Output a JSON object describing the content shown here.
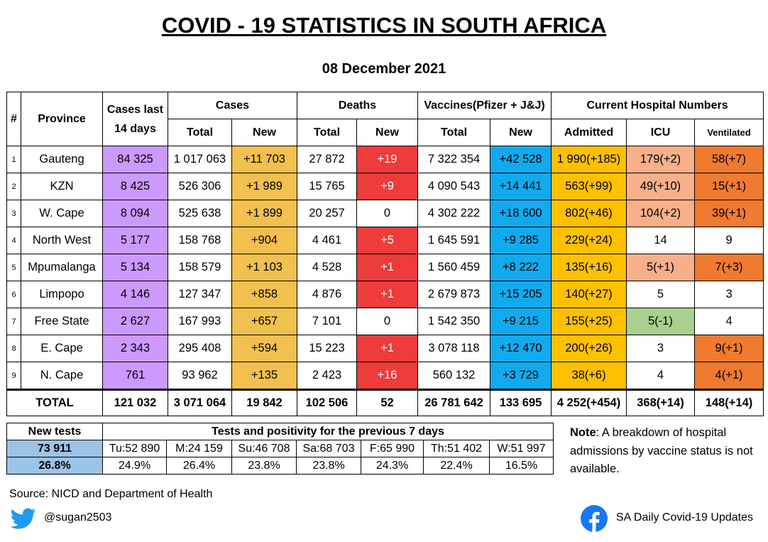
{
  "title": "COVID - 19 STATISTICS IN SOUTH AFRICA",
  "date": "08 December 2021",
  "header": {
    "num": "#",
    "province": "Province",
    "cases14_line1": "Cases last",
    "cases14_line2": "14 days",
    "cases": "Cases",
    "deaths": "Deaths",
    "vaccines": "Vaccines(Pfizer + J&J)",
    "hospital": "Current Hospital Numbers",
    "total": "Total",
    "new": "New",
    "admitted": "Admitted",
    "icu": "ICU",
    "ventilated": "Ventilated"
  },
  "rows": [
    {
      "num": "1",
      "province": "Gauteng",
      "cases14": "84 325",
      "cases_total": "1 017 063",
      "cases_new": "+11 703",
      "deaths_total": "27 872",
      "deaths_new": "+19",
      "vacc_total": "7 322 354",
      "vacc_new": "+42 528",
      "admitted": "1 990(+185)",
      "icu": "179(+2)",
      "ventilated": "58(+7)"
    },
    {
      "num": "2",
      "province": "KZN",
      "cases14": "8 425",
      "cases_total": "526 306",
      "cases_new": "+1 989",
      "deaths_total": "15 765",
      "deaths_new": "+9",
      "vacc_total": "4 090 543",
      "vacc_new": "+14 441",
      "admitted": "563(+99)",
      "icu": "49(+10)",
      "ventilated": "15(+1)"
    },
    {
      "num": "3",
      "province": "W. Cape",
      "cases14": "8 094",
      "cases_total": "525 638",
      "cases_new": "+1 899",
      "deaths_total": "20 257",
      "deaths_new": "0",
      "vacc_total": "4 302 222",
      "vacc_new": "+18 600",
      "admitted": "802(+46)",
      "icu": "104(+2)",
      "ventilated": "39(+1)"
    },
    {
      "num": "4",
      "province": "North West",
      "cases14": "5 177",
      "cases_total": "158 768",
      "cases_new": "+904",
      "deaths_total": "4 461",
      "deaths_new": "+5",
      "vacc_total": "1 645 591",
      "vacc_new": "+9 285",
      "admitted": "229(+24)",
      "icu": "14",
      "ventilated": "9"
    },
    {
      "num": "5",
      "province": "Mpumalanga",
      "cases14": "5 134",
      "cases_total": "158 579",
      "cases_new": "+1 103",
      "deaths_total": "4 528",
      "deaths_new": "+1",
      "vacc_total": "1 560 459",
      "vacc_new": "+8 222",
      "admitted": "135(+16)",
      "icu": "5(+1)",
      "ventilated": "7(+3)"
    },
    {
      "num": "6",
      "province": "Limpopo",
      "cases14": "4 146",
      "cases_total": "127 347",
      "cases_new": "+858",
      "deaths_total": "4 876",
      "deaths_new": "+1",
      "vacc_total": "2 679 873",
      "vacc_new": "+15 205",
      "admitted": "140(+27)",
      "icu": "5",
      "ventilated": "3"
    },
    {
      "num": "7",
      "province": "Free State",
      "cases14": "2 627",
      "cases_total": "167 993",
      "cases_new": "+657",
      "deaths_total": "7 101",
      "deaths_new": "0",
      "vacc_total": "1 542 350",
      "vacc_new": "+9 215",
      "admitted": "155(+25)",
      "icu": "5(-1)",
      "ventilated": "4"
    },
    {
      "num": "8",
      "province": "E. Cape",
      "cases14": "2 343",
      "cases_total": "295 408",
      "cases_new": "+594",
      "deaths_total": "15 223",
      "deaths_new": "+1",
      "vacc_total": "3 078 118",
      "vacc_new": "+12 470",
      "admitted": "200(+26)",
      "icu": "3",
      "ventilated": "9(+1)"
    },
    {
      "num": "9",
      "province": "N. Cape",
      "cases14": "761",
      "cases_total": "93 962",
      "cases_new": "+135",
      "deaths_total": "2 423",
      "deaths_new": "+16",
      "vacc_total": "560 132",
      "vacc_new": "+3 729",
      "admitted": "38(+6)",
      "icu": "4",
      "ventilated": "4(+1)"
    }
  ],
  "total": {
    "label": "TOTAL",
    "cases14": "121 032",
    "cases_total": "3 071 064",
    "cases_new": "19 842",
    "deaths_total": "102 506",
    "deaths_new": "52",
    "vacc_total": "26 781 642",
    "vacc_new": "133 695",
    "admitted": "4 252(+454)",
    "icu": "368(+14)",
    "ventilated": "148(+14)"
  },
  "tests": {
    "new_tests_label": "New tests",
    "heading": "Tests and positivity for the previous 7 days",
    "new_tests_value": "73 911",
    "positivity_value": "26.8%",
    "days": [
      "Tu:52 890",
      "M:24 159",
      "Su:46 708",
      "Sa:68 703",
      "F:65 990",
      "Th:51 402",
      "W:51 997"
    ],
    "positivity": [
      "24.9%",
      "26.4%",
      "23.8%",
      "23.8%",
      "24.3%",
      "22.4%",
      "16.5%"
    ]
  },
  "note": {
    "label": "Note",
    "text": ": A breakdown of hospital admissions by vaccine status is not available."
  },
  "source": "Source: NICD and Department of Health",
  "twitter_handle": "@sugan2503",
  "facebook_page": "SA Daily Covid-19 Updates",
  "colors": {
    "purple": "#cc99ff",
    "amber": "#f2c04e",
    "red": "#ee3b3b",
    "blue": "#11aaee",
    "gold": "#ffc000",
    "salmon": "#f8b08a",
    "orange": "#ef7a30",
    "green": "#a9d08e",
    "light_blue": "#9dc3e6"
  }
}
